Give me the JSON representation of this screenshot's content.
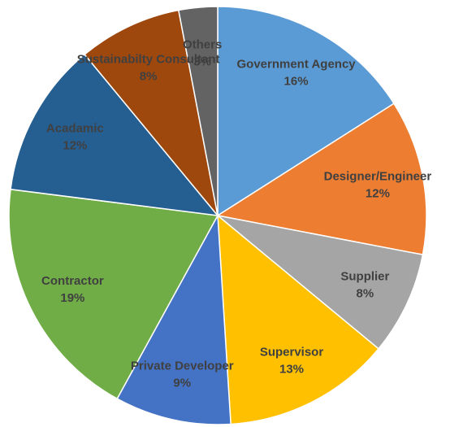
{
  "chart_data": {
    "type": "pie",
    "categories": [
      "Government Agency",
      "Designer/Engineer",
      "Supplier",
      "Supervisor",
      "Private Developer",
      "Contractor",
      "Acadamic",
      "Sustainabilty Consultant",
      "Others"
    ],
    "values": [
      16,
      12,
      8,
      13,
      9,
      19,
      12,
      8,
      3
    ],
    "value_labels": [
      "16%",
      "12%",
      "8%",
      "13%",
      "9%",
      "19%",
      "12%",
      "8%",
      "3%"
    ],
    "colors": [
      "#5b9bd5",
      "#ed7d31",
      "#a5a5a5",
      "#ffc000",
      "#4472c4",
      "#70ad47",
      "#255e91",
      "#9e480e",
      "#636363"
    ]
  }
}
